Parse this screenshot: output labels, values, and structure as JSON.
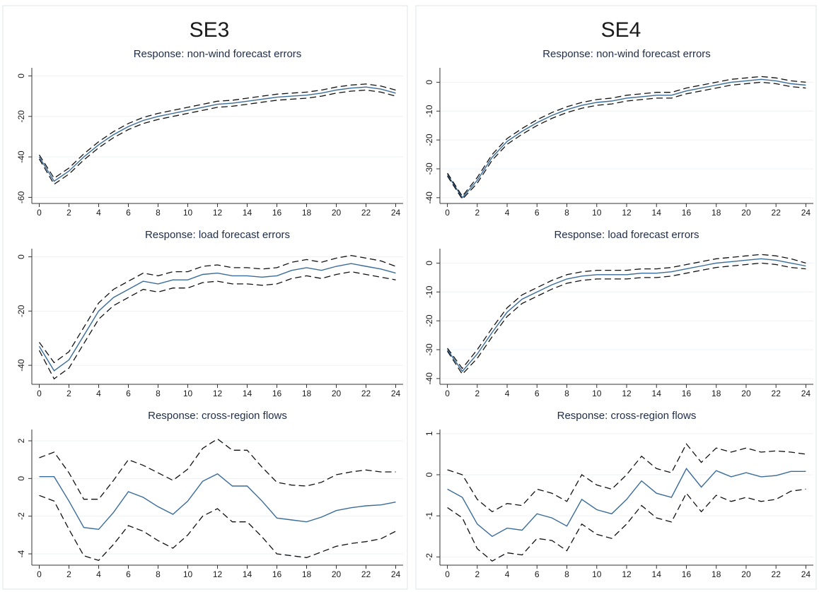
{
  "column_titles": [
    "SE3",
    "SE4"
  ],
  "chart_data": [
    {
      "type": "line",
      "title": "Response: non-wind forecast errors",
      "x": [
        0,
        1,
        2,
        3,
        4,
        5,
        6,
        7,
        8,
        9,
        10,
        11,
        12,
        13,
        14,
        15,
        16,
        17,
        18,
        19,
        20,
        21,
        22,
        23,
        24
      ],
      "xlim": [
        -0.5,
        24.5
      ],
      "xticks": [
        0,
        2,
        4,
        6,
        8,
        10,
        12,
        14,
        16,
        18,
        20,
        22,
        24
      ],
      "ylim": [
        -63,
        4
      ],
      "yticks": [
        -60,
        -40,
        -20,
        0
      ],
      "grid": true,
      "series": [
        {
          "color": "#3a6c9a",
          "dash": false,
          "values": [
            -40,
            -52,
            -47,
            -40,
            -34,
            -29,
            -25,
            -22,
            -20,
            -18.5,
            -17,
            -15.5,
            -14,
            -13.5,
            -12.5,
            -11.5,
            -10.5,
            -10,
            -9.5,
            -8.5,
            -7,
            -6,
            -5.5,
            -6.5,
            -8.5
          ]
        },
        {
          "color": "#111111",
          "dash": true,
          "values": [
            -39,
            -50.5,
            -45.5,
            -38.5,
            -32.5,
            -27.5,
            -23.5,
            -20.5,
            -18.5,
            -17,
            -15.5,
            -14,
            -12.5,
            -12,
            -11,
            -10,
            -9,
            -8.5,
            -8,
            -7,
            -5.5,
            -4.5,
            -4,
            -5,
            -7
          ]
        },
        {
          "color": "#111111",
          "dash": true,
          "values": [
            -41,
            -53.5,
            -48.5,
            -41.5,
            -35.5,
            -30.5,
            -26.5,
            -23.5,
            -21.5,
            -20,
            -18.5,
            -17,
            -15.5,
            -15,
            -14,
            -13,
            -12,
            -11.5,
            -11,
            -10,
            -8.5,
            -7.5,
            -7,
            -8,
            -10
          ]
        }
      ]
    },
    {
      "type": "line",
      "title": "Response: load forecast errors",
      "x": [
        0,
        1,
        2,
        3,
        4,
        5,
        6,
        7,
        8,
        9,
        10,
        11,
        12,
        13,
        14,
        15,
        16,
        17,
        18,
        19,
        20,
        21,
        22,
        23,
        24
      ],
      "xlim": [
        -0.5,
        24.5
      ],
      "xticks": [
        0,
        2,
        4,
        6,
        8,
        10,
        12,
        14,
        16,
        18,
        20,
        22,
        24
      ],
      "ylim": [
        -47,
        3
      ],
      "yticks": [
        -40,
        -20,
        0
      ],
      "grid": true,
      "series": [
        {
          "color": "#3a6c9a",
          "dash": false,
          "values": [
            -33,
            -42,
            -38,
            -29,
            -20,
            -15,
            -12,
            -9,
            -10,
            -8.5,
            -8.5,
            -6.5,
            -6,
            -7,
            -7,
            -7.5,
            -7,
            -5,
            -4,
            -5,
            -3.5,
            -2.5,
            -3.5,
            -4.5,
            -6
          ]
        },
        {
          "color": "#111111",
          "dash": true,
          "values": [
            -31.5,
            -39,
            -35,
            -26,
            -17,
            -12,
            -9,
            -6,
            -7,
            -5.5,
            -5.5,
            -3.5,
            -3,
            -4,
            -4,
            -4.5,
            -4,
            -2,
            -1,
            -2,
            -0.5,
            0.5,
            -0.5,
            -1.5,
            -3.5
          ]
        },
        {
          "color": "#111111",
          "dash": true,
          "values": [
            -34.5,
            -45,
            -41,
            -32,
            -23,
            -18,
            -15,
            -12,
            -13,
            -11.5,
            -11.5,
            -9.5,
            -9,
            -10,
            -10,
            -10.5,
            -10,
            -8,
            -7,
            -8,
            -6.5,
            -5.5,
            -6.5,
            -7.5,
            -8.5
          ]
        }
      ]
    },
    {
      "type": "line",
      "title": "Response: cross-region flows",
      "x": [
        0,
        1,
        2,
        3,
        4,
        5,
        6,
        7,
        8,
        9,
        10,
        11,
        12,
        13,
        14,
        15,
        16,
        17,
        18,
        19,
        20,
        21,
        22,
        23,
        24
      ],
      "xlim": [
        -0.5,
        24.5
      ],
      "xticks": [
        0,
        2,
        4,
        6,
        8,
        10,
        12,
        14,
        16,
        18,
        20,
        22,
        24
      ],
      "ylim": [
        -4.6,
        2.6
      ],
      "yticks": [
        -4,
        -2,
        0,
        2
      ],
      "grid": true,
      "series": [
        {
          "color": "#3a6c9a",
          "dash": false,
          "values": [
            0.1,
            0.1,
            -1.2,
            -2.6,
            -2.7,
            -1.8,
            -0.7,
            -1.0,
            -1.5,
            -1.9,
            -1.2,
            -0.15,
            0.25,
            -0.4,
            -0.4,
            -1.2,
            -2.1,
            -2.2,
            -2.3,
            -2.05,
            -1.7,
            -1.55,
            -1.45,
            -1.4,
            -1.25
          ]
        },
        {
          "color": "#111111",
          "dash": true,
          "values": [
            1.1,
            1.4,
            0.3,
            -1.1,
            -1.1,
            -0.1,
            1.0,
            0.7,
            0.3,
            -0.1,
            0.5,
            1.6,
            2.1,
            1.5,
            1.5,
            0.6,
            -0.2,
            -0.35,
            -0.4,
            -0.2,
            0.2,
            0.35,
            0.45,
            0.35,
            0.35
          ]
        },
        {
          "color": "#111111",
          "dash": true,
          "values": [
            -0.9,
            -1.2,
            -2.7,
            -4.1,
            -4.35,
            -3.5,
            -2.5,
            -2.8,
            -3.3,
            -3.7,
            -3.0,
            -2.0,
            -1.6,
            -2.3,
            -2.3,
            -3.1,
            -4.0,
            -4.1,
            -4.2,
            -3.9,
            -3.6,
            -3.45,
            -3.35,
            -3.2,
            -2.8
          ]
        }
      ]
    },
    {
      "type": "line",
      "title": "Response: non-wind forecast errors",
      "x": [
        0,
        1,
        2,
        3,
        4,
        5,
        6,
        7,
        8,
        9,
        10,
        11,
        12,
        13,
        14,
        15,
        16,
        17,
        18,
        19,
        20,
        21,
        22,
        23,
        24
      ],
      "xlim": [
        -0.5,
        24.5
      ],
      "xticks": [
        0,
        2,
        4,
        6,
        8,
        10,
        12,
        14,
        16,
        18,
        20,
        22,
        24
      ],
      "ylim": [
        -42,
        5
      ],
      "yticks": [
        -40,
        -30,
        -20,
        -10,
        0
      ],
      "grid": true,
      "series": [
        {
          "color": "#3a6c9a",
          "dash": false,
          "values": [
            -32,
            -40,
            -34,
            -26,
            -20.5,
            -17,
            -14,
            -11.5,
            -9.5,
            -8,
            -7,
            -6.5,
            -5.5,
            -5,
            -4.5,
            -4.5,
            -3,
            -2,
            -1,
            0,
            0.5,
            1,
            0.5,
            -0.5,
            -1
          ]
        },
        {
          "color": "#111111",
          "dash": true,
          "values": [
            -31.5,
            -39.5,
            -33,
            -25,
            -19.5,
            -16,
            -13,
            -10.5,
            -8.5,
            -7,
            -6,
            -5.5,
            -4.5,
            -4,
            -3.5,
            -3.5,
            -2,
            -1,
            0,
            1,
            1.5,
            2,
            1.5,
            0.5,
            0
          ]
        },
        {
          "color": "#111111",
          "dash": true,
          "values": [
            -32.5,
            -40.5,
            -35,
            -27,
            -21.5,
            -18,
            -15,
            -12.5,
            -10.5,
            -9,
            -8,
            -7.5,
            -6.5,
            -6,
            -5.5,
            -5.5,
            -4,
            -3,
            -2,
            -1,
            -0.5,
            0,
            -0.5,
            -1.5,
            -2
          ]
        }
      ]
    },
    {
      "type": "line",
      "title": "Response: load forecast errors",
      "x": [
        0,
        1,
        2,
        3,
        4,
        5,
        6,
        7,
        8,
        9,
        10,
        11,
        12,
        13,
        14,
        15,
        16,
        17,
        18,
        19,
        20,
        21,
        22,
        23,
        24
      ],
      "xlim": [
        -0.5,
        24.5
      ],
      "xticks": [
        0,
        2,
        4,
        6,
        8,
        10,
        12,
        14,
        16,
        18,
        20,
        22,
        24
      ],
      "ylim": [
        -42,
        5
      ],
      "yticks": [
        -40,
        -30,
        -20,
        -10,
        0
      ],
      "grid": true,
      "series": [
        {
          "color": "#3a6c9a",
          "dash": false,
          "values": [
            -30,
            -37.5,
            -31.5,
            -24,
            -17,
            -12.5,
            -10,
            -7.5,
            -5.5,
            -4.5,
            -4,
            -4,
            -4,
            -3.5,
            -3.5,
            -3,
            -2,
            -1,
            0,
            0.5,
            1,
            1.5,
            1,
            0,
            -1
          ]
        },
        {
          "color": "#111111",
          "dash": true,
          "values": [
            -29.5,
            -36.5,
            -30,
            -22.5,
            -15.5,
            -11,
            -8.5,
            -6,
            -4,
            -3,
            -2.5,
            -2.5,
            -2.5,
            -2,
            -2,
            -1.5,
            -0.5,
            0.5,
            1.5,
            2,
            2.5,
            3,
            2.5,
            1.5,
            0
          ]
        },
        {
          "color": "#111111",
          "dash": true,
          "values": [
            -30.5,
            -38.5,
            -33,
            -25.5,
            -18.5,
            -14,
            -11.5,
            -9,
            -7,
            -6,
            -5.5,
            -5.5,
            -5.5,
            -5,
            -5,
            -4.5,
            -3.5,
            -2.5,
            -1.5,
            -1,
            -0.5,
            0,
            -0.5,
            -1.5,
            -2
          ]
        }
      ]
    },
    {
      "type": "line",
      "title": "Response: cross-region flows",
      "x": [
        0,
        1,
        2,
        3,
        4,
        5,
        6,
        7,
        8,
        9,
        10,
        11,
        12,
        13,
        14,
        15,
        16,
        17,
        18,
        19,
        20,
        21,
        22,
        23,
        24
      ],
      "xlim": [
        -0.5,
        24.5
      ],
      "xticks": [
        0,
        2,
        4,
        6,
        8,
        10,
        12,
        14,
        16,
        18,
        20,
        22,
        24
      ],
      "ylim": [
        -2.2,
        1.1
      ],
      "yticks": [
        -2,
        -1,
        0,
        1
      ],
      "grid": true,
      "series": [
        {
          "color": "#3a6c9a",
          "dash": false,
          "values": [
            -0.35,
            -0.55,
            -1.2,
            -1.5,
            -1.3,
            -1.35,
            -0.95,
            -1.05,
            -1.25,
            -0.6,
            -0.85,
            -0.95,
            -0.6,
            -0.15,
            -0.45,
            -0.55,
            0.15,
            -0.3,
            0.1,
            -0.05,
            0.05,
            -0.05,
            -0.02,
            0.08,
            0.08
          ]
        },
        {
          "color": "#111111",
          "dash": true,
          "values": [
            0.12,
            0.0,
            -0.6,
            -0.9,
            -0.7,
            -0.75,
            -0.35,
            -0.45,
            -0.65,
            0.0,
            -0.25,
            -0.35,
            0.0,
            0.45,
            0.15,
            0.05,
            0.75,
            0.3,
            0.65,
            0.55,
            0.65,
            0.55,
            0.58,
            0.55,
            0.5
          ]
        },
        {
          "color": "#111111",
          "dash": true,
          "values": [
            -0.8,
            -1.05,
            -1.8,
            -2.1,
            -1.9,
            -1.95,
            -1.55,
            -1.6,
            -1.85,
            -1.2,
            -1.45,
            -1.55,
            -1.2,
            -0.75,
            -1.05,
            -1.15,
            -0.45,
            -0.9,
            -0.5,
            -0.65,
            -0.55,
            -0.65,
            -0.6,
            -0.4,
            -0.35
          ]
        }
      ]
    }
  ]
}
